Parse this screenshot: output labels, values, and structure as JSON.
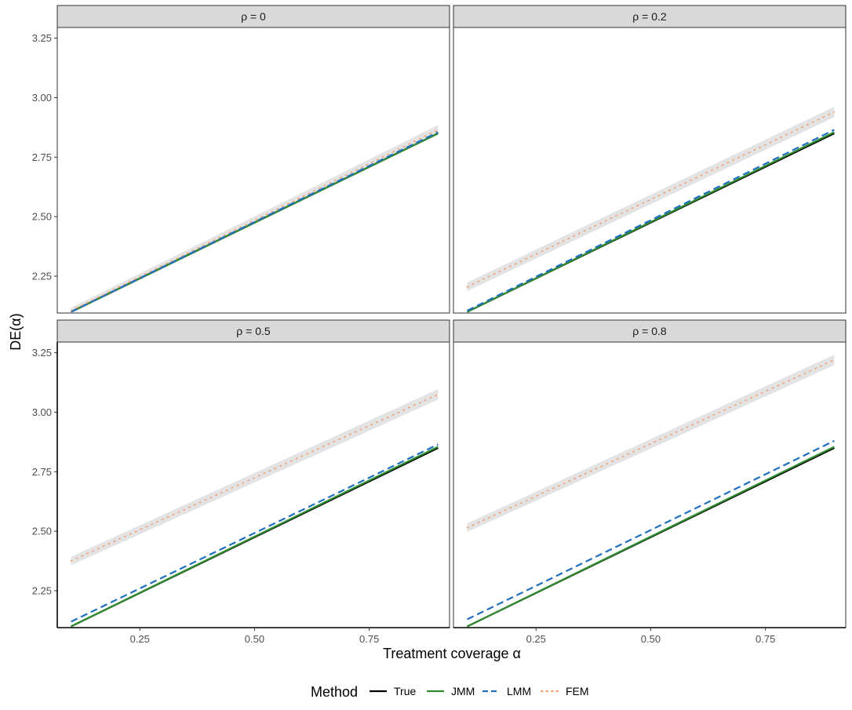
{
  "chart_data": {
    "type": "line",
    "xlabel": "Treatment coverage α",
    "ylabel": "DE(α)",
    "xlim": [
      0.07,
      0.925
    ],
    "ylim": [
      2.095,
      3.295
    ],
    "xticks": [
      {
        "value": 0.25,
        "label": "0.25"
      },
      {
        "value": 0.5,
        "label": "0.50"
      },
      {
        "value": 0.75,
        "label": "0.75"
      }
    ],
    "yticks": [
      {
        "value": 2.25,
        "label": "2.25"
      },
      {
        "value": 2.5,
        "label": "2.50"
      },
      {
        "value": 2.75,
        "label": "2.75"
      },
      {
        "value": 3.0,
        "label": "3.00"
      },
      {
        "value": 3.25,
        "label": "3.25"
      }
    ],
    "grid": false,
    "legend": {
      "title": "Method",
      "position": "bottom",
      "entries": [
        {
          "label": "True",
          "color": "#000000",
          "dash": "solid"
        },
        {
          "label": "JMM",
          "color": "#2e8b2e",
          "dash": "solid"
        },
        {
          "label": "LMM",
          "color": "#1f6fbf",
          "dash": "dashed"
        },
        {
          "label": "FEM",
          "color": "#f0a070",
          "dash": "dotted"
        }
      ]
    },
    "band_color": "#cccccc",
    "panels": [
      {
        "title": "ρ = 0",
        "series": [
          {
            "name": "True",
            "x": [
              0.1,
              0.9
            ],
            "y": [
              2.1,
              2.85
            ]
          },
          {
            "name": "JMM",
            "x": [
              0.1,
              0.9
            ],
            "y": [
              2.1,
              2.85
            ]
          },
          {
            "name": "LMM",
            "x": [
              0.1,
              0.9
            ],
            "y": [
              2.1,
              2.855
            ]
          },
          {
            "name": "FEM",
            "x": [
              0.1,
              0.9
            ],
            "y": [
              2.105,
              2.865
            ],
            "band": [
              0.012,
              0.02
            ]
          }
        ]
      },
      {
        "title": "ρ = 0.2",
        "series": [
          {
            "name": "True",
            "x": [
              0.1,
              0.9
            ],
            "y": [
              2.1,
              2.85
            ]
          },
          {
            "name": "JMM",
            "x": [
              0.1,
              0.9
            ],
            "y": [
              2.1,
              2.855
            ]
          },
          {
            "name": "LMM",
            "x": [
              0.1,
              0.9
            ],
            "y": [
              2.105,
              2.865
            ]
          },
          {
            "name": "FEM",
            "x": [
              0.1,
              0.9
            ],
            "y": [
              2.205,
              2.94
            ],
            "band": [
              0.018,
              0.022
            ]
          }
        ]
      },
      {
        "title": "ρ = 0.5",
        "series": [
          {
            "name": "True",
            "x": [
              0.1,
              0.9
            ],
            "y": [
              2.1,
              2.85
            ]
          },
          {
            "name": "JMM",
            "x": [
              0.1,
              0.9
            ],
            "y": [
              2.1,
              2.855
            ]
          },
          {
            "name": "LMM",
            "x": [
              0.1,
              0.9
            ],
            "y": [
              2.12,
              2.865
            ]
          },
          {
            "name": "FEM",
            "x": [
              0.1,
              0.9
            ],
            "y": [
              2.375,
              3.075
            ],
            "band": [
              0.018,
              0.022
            ]
          }
        ]
      },
      {
        "title": "ρ = 0.8",
        "series": [
          {
            "name": "True",
            "x": [
              0.1,
              0.9
            ],
            "y": [
              2.1,
              2.85
            ]
          },
          {
            "name": "JMM",
            "x": [
              0.1,
              0.9
            ],
            "y": [
              2.1,
              2.855
            ]
          },
          {
            "name": "LMM",
            "x": [
              0.1,
              0.9
            ],
            "y": [
              2.13,
              2.88
            ]
          },
          {
            "name": "FEM",
            "x": [
              0.1,
              0.9
            ],
            "y": [
              2.515,
              3.22
            ],
            "band": [
              0.018,
              0.022
            ]
          }
        ]
      }
    ]
  }
}
